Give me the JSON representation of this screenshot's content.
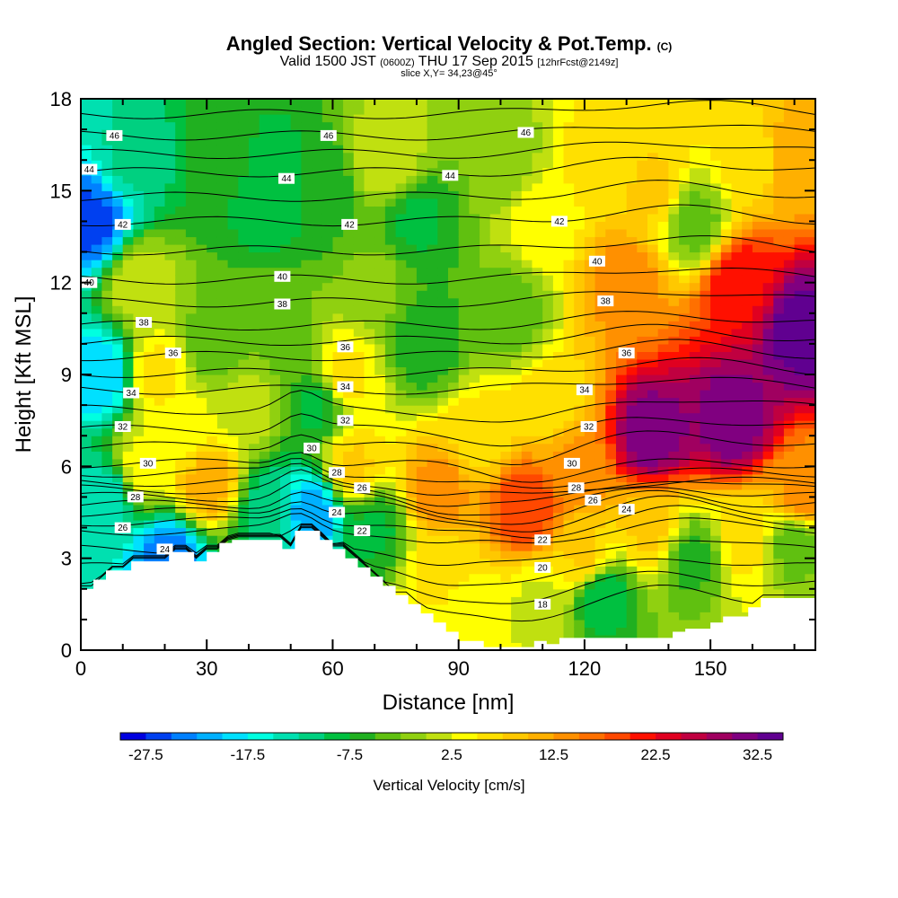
{
  "header": {
    "title": "Angled Section: Vertical Velocity & Pot.Temp.",
    "title_unit": "(C)",
    "subtitle_main": "Valid 1500 JST",
    "subtitle_utc": "(0600Z)",
    "subtitle_date": "THU 17 Sep 2015",
    "subtitle_fcst": "[12hrFcst@2149z]",
    "slice": "slice X,Y= 34,23@45°"
  },
  "chart_data": {
    "type": "heatmap",
    "title": "Angled Section: Vertical Velocity & Pot.Temp.",
    "xlabel": "Distance [nm]",
    "ylabel": "Height [Kft MSL]",
    "xlim": [
      0,
      175
    ],
    "ylim": [
      0,
      18
    ],
    "x_ticks": [
      0,
      30,
      60,
      90,
      120,
      150
    ],
    "y_ticks": [
      0,
      3,
      6,
      9,
      12,
      15,
      18
    ],
    "colorbar": {
      "title": "Vertical Velocity [cm/s]",
      "levels": [
        -30,
        -27.5,
        -25,
        -22.5,
        -20,
        -17.5,
        -15,
        -12.5,
        -10,
        -7.5,
        -5,
        -2.5,
        0,
        2.5,
        5,
        7.5,
        10,
        12.5,
        15,
        17.5,
        20,
        22.5,
        25,
        27.5,
        30,
        32.5,
        35
      ],
      "tick_labels": [
        "-27.5",
        "-17.5",
        "-7.5",
        "2.5",
        "12.5",
        "22.5",
        "32.5"
      ],
      "colors": [
        "#0000e0",
        "#0040f0",
        "#0080ff",
        "#00b0ff",
        "#00e0ff",
        "#00ffe0",
        "#00e0b0",
        "#00d080",
        "#00c040",
        "#20b020",
        "#60c010",
        "#90d010",
        "#c0e010",
        "#ffff00",
        "#ffe000",
        "#ffc800",
        "#ffb000",
        "#ff9000",
        "#ff7000",
        "#ff4800",
        "#ff1000",
        "#e00020",
        "#c00040",
        "#a00060",
        "#800080",
        "#600090"
      ]
    },
    "velocity_cells": [
      {
        "x": 3,
        "z": 14,
        "v": -26
      },
      {
        "x": 5,
        "z": 9,
        "v": -20
      },
      {
        "x": 6,
        "z": 5,
        "v": -14
      },
      {
        "x": 12,
        "z": 16,
        "v": -12
      },
      {
        "x": 14,
        "z": 12,
        "v": 2
      },
      {
        "x": 18,
        "z": 9,
        "v": 6
      },
      {
        "x": 15,
        "z": 6,
        "v": 4
      },
      {
        "x": 21,
        "z": 3,
        "v": -24
      },
      {
        "x": 30,
        "z": 5.5,
        "v": 12
      },
      {
        "x": 25,
        "z": 7,
        "v": 4
      },
      {
        "x": 32,
        "z": 10,
        "v": -4
      },
      {
        "x": 33,
        "z": 16,
        "v": -6
      },
      {
        "x": 45,
        "z": 15,
        "v": -10
      },
      {
        "x": 45,
        "z": 4.5,
        "v": -12
      },
      {
        "x": 48,
        "z": 10,
        "v": -3
      },
      {
        "x": 55,
        "z": 4.5,
        "v": -22
      },
      {
        "x": 56,
        "z": 8,
        "v": -8
      },
      {
        "x": 57,
        "z": 15,
        "v": -7
      },
      {
        "x": 63,
        "z": 9,
        "v": 6
      },
      {
        "x": 65,
        "z": 6,
        "v": 8
      },
      {
        "x": 70,
        "z": 4,
        "v": -8
      },
      {
        "x": 70,
        "z": 12,
        "v": -2
      },
      {
        "x": 73,
        "z": 16,
        "v": 2
      },
      {
        "x": 80,
        "z": 14,
        "v": -8
      },
      {
        "x": 82,
        "z": 10,
        "v": -7
      },
      {
        "x": 85,
        "z": 5.2,
        "v": 14
      },
      {
        "x": 86,
        "z": 2.5,
        "v": 6
      },
      {
        "x": 95,
        "z": 7,
        "v": 6
      },
      {
        "x": 100,
        "z": 16,
        "v": -2
      },
      {
        "x": 102,
        "z": 11,
        "v": -4
      },
      {
        "x": 106,
        "z": 4.7,
        "v": 20
      },
      {
        "x": 110,
        "z": 14,
        "v": 4
      },
      {
        "x": 112,
        "z": 8,
        "v": 6
      },
      {
        "x": 110,
        "z": 1.5,
        "v": 2
      },
      {
        "x": 118,
        "z": 6,
        "v": 14
      },
      {
        "x": 124,
        "z": 1.8,
        "v": -10
      },
      {
        "x": 124,
        "z": 16,
        "v": 6
      },
      {
        "x": 130,
        "z": 12,
        "v": 14
      },
      {
        "x": 136,
        "z": 7,
        "v": 32
      },
      {
        "x": 136,
        "z": 4,
        "v": 8
      },
      {
        "x": 137,
        "z": 15,
        "v": 8
      },
      {
        "x": 146,
        "z": 3,
        "v": -6
      },
      {
        "x": 146,
        "z": 14,
        "v": -4
      },
      {
        "x": 155,
        "z": 7.5,
        "v": 32
      },
      {
        "x": 157,
        "z": 12,
        "v": 22
      },
      {
        "x": 158,
        "z": 3.5,
        "v": 6
      },
      {
        "x": 160,
        "z": 16,
        "v": 6
      },
      {
        "x": 170,
        "z": 16,
        "v": 12
      },
      {
        "x": 172,
        "z": 10.5,
        "v": 34
      },
      {
        "x": 172,
        "z": 5,
        "v": 14
      },
      {
        "x": 170,
        "z": 3.5,
        "v": -4
      },
      {
        "x": 92,
        "z": 1.2,
        "v": 3
      },
      {
        "x": 40,
        "z": 8,
        "v": 1
      },
      {
        "x": 120,
        "z": 3,
        "v": 8
      }
    ],
    "terrain": [
      [
        0,
        2
      ],
      [
        3,
        2
      ],
      [
        3,
        2.3
      ],
      [
        6,
        2.3
      ],
      [
        6,
        2.6
      ],
      [
        12,
        2.6
      ],
      [
        12,
        2.9
      ],
      [
        21,
        2.9
      ],
      [
        21,
        3.2
      ],
      [
        27,
        3.2
      ],
      [
        27,
        2.9
      ],
      [
        30,
        2.9
      ],
      [
        30,
        3.2
      ],
      [
        33,
        3.2
      ],
      [
        33,
        3.5
      ],
      [
        36,
        3.5
      ],
      [
        36,
        3.6
      ],
      [
        48,
        3.6
      ],
      [
        48,
        3.3
      ],
      [
        51,
        3.3
      ],
      [
        51,
        3.9
      ],
      [
        57,
        3.9
      ],
      [
        57,
        3.6
      ],
      [
        60,
        3.6
      ],
      [
        60,
        3.3
      ],
      [
        63,
        3.3
      ],
      [
        63,
        3.0
      ],
      [
        66,
        3.0
      ],
      [
        66,
        2.7
      ],
      [
        69,
        2.7
      ],
      [
        69,
        2.4
      ],
      [
        72,
        2.4
      ],
      [
        72,
        2.1
      ],
      [
        75,
        2.1
      ],
      [
        75,
        1.8
      ],
      [
        78,
        1.8
      ],
      [
        78,
        1.5
      ],
      [
        81,
        1.5
      ],
      [
        81,
        1.2
      ],
      [
        84,
        1.2
      ],
      [
        84,
        0.9
      ],
      [
        87,
        0.9
      ],
      [
        87,
        0.6
      ],
      [
        90,
        0.6
      ],
      [
        90,
        0.3
      ],
      [
        96,
        0.3
      ],
      [
        96,
        0.1
      ],
      [
        108,
        0.1
      ],
      [
        108,
        0.3
      ],
      [
        111,
        0.3
      ],
      [
        111,
        0.2
      ],
      [
        114,
        0.2
      ],
      [
        114,
        0.4
      ],
      [
        141,
        0.4
      ],
      [
        141,
        0.6
      ],
      [
        144,
        0.6
      ],
      [
        144,
        0.7
      ],
      [
        150,
        0.7
      ],
      [
        150,
        0.9
      ],
      [
        153,
        0.9
      ],
      [
        153,
        1.1
      ],
      [
        159,
        1.1
      ],
      [
        159,
        1.4
      ],
      [
        162,
        1.4
      ],
      [
        162,
        1.7
      ],
      [
        175,
        1.7
      ]
    ],
    "theta_contours": {
      "min": 18,
      "max": 48,
      "step": 1,
      "base_height_kft": {
        "18": 1.6,
        "20": 2.7,
        "22": 3.9,
        "24": 4.5,
        "26": 5.0,
        "28": 5.5,
        "30": 6.1,
        "32": 7.2,
        "34": 8.5,
        "36": 9.6,
        "38": 10.6,
        "40": 12.1,
        "42": 14.0,
        "44": 15.6,
        "46": 16.8,
        "48": 18.2
      }
    },
    "contour_labels": [
      {
        "x": 8,
        "z": 16.8,
        "text": "46"
      },
      {
        "x": 59,
        "z": 16.8,
        "text": "46"
      },
      {
        "x": 106,
        "z": 16.9,
        "text": "46"
      },
      {
        "x": 2,
        "z": 15.7,
        "text": "44"
      },
      {
        "x": 49,
        "z": 15.4,
        "text": "44"
      },
      {
        "x": 88,
        "z": 15.5,
        "text": "44"
      },
      {
        "x": 10,
        "z": 13.9,
        "text": "42"
      },
      {
        "x": 64,
        "z": 13.9,
        "text": "42"
      },
      {
        "x": 114,
        "z": 14.0,
        "text": "42"
      },
      {
        "x": 2,
        "z": 12.0,
        "text": "40"
      },
      {
        "x": 48,
        "z": 12.2,
        "text": "40"
      },
      {
        "x": 123,
        "z": 12.7,
        "text": "40"
      },
      {
        "x": 15,
        "z": 10.7,
        "text": "38"
      },
      {
        "x": 48,
        "z": 11.3,
        "text": "38"
      },
      {
        "x": 125,
        "z": 11.4,
        "text": "38"
      },
      {
        "x": 22,
        "z": 9.7,
        "text": "36"
      },
      {
        "x": 63,
        "z": 9.9,
        "text": "36"
      },
      {
        "x": 130,
        "z": 9.7,
        "text": "36"
      },
      {
        "x": 12,
        "z": 8.4,
        "text": "34"
      },
      {
        "x": 63,
        "z": 8.6,
        "text": "34"
      },
      {
        "x": 120,
        "z": 8.5,
        "text": "34"
      },
      {
        "x": 10,
        "z": 7.3,
        "text": "32"
      },
      {
        "x": 63,
        "z": 7.5,
        "text": "32"
      },
      {
        "x": 121,
        "z": 7.3,
        "text": "32"
      },
      {
        "x": 16,
        "z": 6.1,
        "text": "30"
      },
      {
        "x": 55,
        "z": 6.6,
        "text": "30"
      },
      {
        "x": 117,
        "z": 6.1,
        "text": "30"
      },
      {
        "x": 13,
        "z": 5.0,
        "text": "28"
      },
      {
        "x": 61,
        "z": 5.8,
        "text": "28"
      },
      {
        "x": 118,
        "z": 5.3,
        "text": "28"
      },
      {
        "x": 10,
        "z": 4.0,
        "text": "26"
      },
      {
        "x": 67,
        "z": 5.3,
        "text": "26"
      },
      {
        "x": 122,
        "z": 4.9,
        "text": "26"
      },
      {
        "x": 20,
        "z": 3.3,
        "text": "24"
      },
      {
        "x": 61,
        "z": 4.5,
        "text": "24"
      },
      {
        "x": 130,
        "z": 4.6,
        "text": "24"
      },
      {
        "x": 67,
        "z": 3.9,
        "text": "22"
      },
      {
        "x": 110,
        "z": 3.6,
        "text": "22"
      },
      {
        "x": 110,
        "z": 2.7,
        "text": "20"
      },
      {
        "x": 110,
        "z": 1.5,
        "text": "18"
      }
    ]
  }
}
